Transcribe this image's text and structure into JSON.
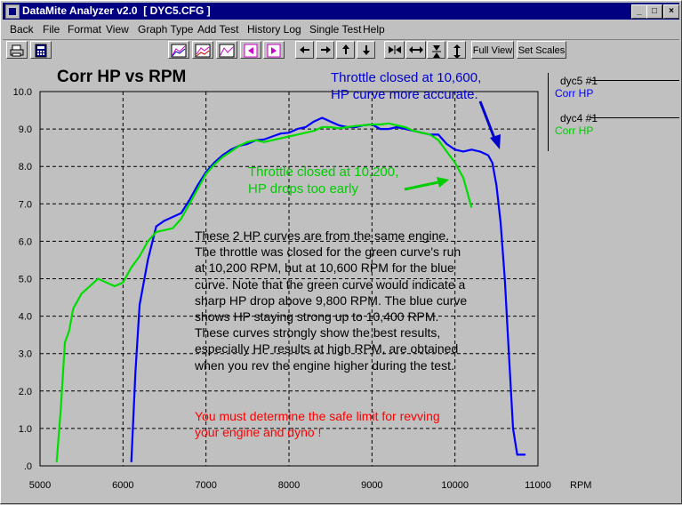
{
  "window": {
    "title": "DataMite Analyzer v2.0  [ DYC5.CFG ]",
    "minimize_glyph": "_",
    "maximize_glyph": "□",
    "close_glyph": "×"
  },
  "menu": {
    "items": [
      "Back",
      "File",
      "Format",
      "View",
      "Graph Type",
      "Add Test",
      "History Log",
      "Single Test",
      "Help"
    ]
  },
  "toolbar": {
    "buttons": [
      {
        "name": "print-icon"
      },
      {
        "name": "calculator-icon"
      },
      {
        "name": "graph-zoom-in-icon"
      },
      {
        "name": "graph-zoom-out-icon"
      },
      {
        "name": "graph-icon"
      },
      {
        "name": "arrow-left-icon"
      },
      {
        "name": "arrow-right-icon"
      },
      {
        "name": "arrow-left-icon"
      },
      {
        "name": "arrow-right-icon"
      },
      {
        "name": "arrow-up-icon"
      },
      {
        "name": "arrow-down-icon"
      },
      {
        "name": "compress-horizontal-icon"
      },
      {
        "name": "expand-horizontal-icon"
      },
      {
        "name": "compress-vertical-icon"
      },
      {
        "name": "expand-vertical-icon"
      }
    ],
    "full_view_label": "Full View",
    "set_scales_label": "Set Scales"
  },
  "legend": [
    {
      "name": "dyc5   #1",
      "series": "Corr HP",
      "color": "#0000ff"
    },
    {
      "name": "dyc4   #1",
      "series": "Corr HP",
      "color": "#00cc00"
    }
  ],
  "annotations": {
    "blue_line1": "Throttle closed at 10,600,",
    "blue_line2": "HP curve more accurate.",
    "green_line1": "Throttle closed at 10,200,",
    "green_line2": "HP drops too early",
    "note": "These 2 HP curves are from the same engine.  The throttle was closed for the green curve's run at 10,200 RPM, but at 10,600 RPM for the blue curve.  Note that the green curve would indicate a sharp HP drop above 9,800 RPM.  The blue curve shows HP staying strong up to 10,400 RPM.  These curves strongly show the best results, especially HP results at high RPM, are obtained when you rev the engine higher during the test.",
    "warning": "You must determine the safe limit for revving your engine and dyno !",
    "blue_color": "#0000cc",
    "green_color": "#00cc00",
    "warning_color": "#ff0000"
  },
  "chart_data": {
    "type": "line",
    "title": "Corr HP vs RPM",
    "xlabel": "RPM",
    "ylabel": "",
    "xlim": [
      5000,
      11000
    ],
    "ylim": [
      0,
      10
    ],
    "x_ticks": [
      "5000",
      "6000",
      "7000",
      "8000",
      "9000",
      "10000",
      "11000"
    ],
    "y_ticks": [
      ".0",
      "1.0",
      "2.0",
      "3.0",
      "4.0",
      "5.0",
      "6.0",
      "7.0",
      "8.0",
      "9.0",
      "10.0"
    ],
    "grid": true,
    "legend_position": "right",
    "series": [
      {
        "name": "dyc5 #1 Corr HP",
        "color": "#0000ff",
        "x": [
          6100,
          6150,
          6200,
          6300,
          6400,
          6500,
          6600,
          6700,
          6800,
          6900,
          7000,
          7100,
          7200,
          7300,
          7400,
          7500,
          7600,
          7700,
          7800,
          7900,
          8000,
          8100,
          8200,
          8300,
          8400,
          8500,
          8600,
          8700,
          8800,
          8900,
          9000,
          9100,
          9200,
          9300,
          9400,
          9500,
          9600,
          9700,
          9800,
          9900,
          10000,
          10100,
          10200,
          10300,
          10400,
          10450,
          10500,
          10550,
          10600,
          10650,
          10700,
          10750,
          10800,
          10850
        ],
        "y": [
          0.1,
          2.5,
          4.3,
          5.5,
          6.4,
          6.55,
          6.65,
          6.75,
          7.1,
          7.5,
          7.85,
          8.1,
          8.3,
          8.45,
          8.55,
          8.6,
          8.7,
          8.72,
          8.8,
          8.88,
          8.9,
          9.0,
          9.05,
          9.2,
          9.3,
          9.2,
          9.1,
          9.05,
          9.05,
          9.1,
          9.12,
          9.0,
          9.0,
          9.05,
          9.0,
          8.95,
          8.9,
          8.85,
          8.85,
          8.6,
          8.45,
          8.4,
          8.45,
          8.4,
          8.3,
          8.1,
          7.5,
          6.5,
          5.0,
          3.0,
          1.0,
          0.3,
          0.3,
          0.3
        ]
      },
      {
        "name": "dyc4 #1 Corr HP",
        "color": "#00dd00",
        "x": [
          5200,
          5250,
          5300,
          5350,
          5400,
          5500,
          5600,
          5700,
          5800,
          5900,
          6000,
          6100,
          6200,
          6300,
          6400,
          6500,
          6600,
          6700,
          6800,
          6900,
          7000,
          7100,
          7200,
          7300,
          7400,
          7500,
          7600,
          7700,
          7800,
          7900,
          8000,
          8100,
          8200,
          8300,
          8400,
          8500,
          8600,
          8700,
          8800,
          8900,
          9000,
          9100,
          9200,
          9300,
          9400,
          9500,
          9600,
          9700,
          9800,
          9900,
          10000,
          10100,
          10150,
          10200
        ],
        "y": [
          0.1,
          1.5,
          3.3,
          3.6,
          4.2,
          4.6,
          4.8,
          5.0,
          4.9,
          4.8,
          4.9,
          5.3,
          5.6,
          6.0,
          6.25,
          6.3,
          6.35,
          6.6,
          7.0,
          7.4,
          7.8,
          8.05,
          8.25,
          8.4,
          8.55,
          8.65,
          8.7,
          8.65,
          8.7,
          8.75,
          8.8,
          8.85,
          8.9,
          8.95,
          9.05,
          9.05,
          9.02,
          9.05,
          9.08,
          9.1,
          9.12,
          9.12,
          9.15,
          9.1,
          9.05,
          8.95,
          8.9,
          8.85,
          8.7,
          8.4,
          8.1,
          7.7,
          7.3,
          6.9
        ]
      }
    ]
  }
}
